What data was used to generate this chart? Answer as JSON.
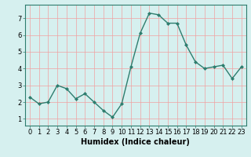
{
  "x": [
    0,
    1,
    2,
    3,
    4,
    5,
    6,
    7,
    8,
    9,
    10,
    11,
    12,
    13,
    14,
    15,
    16,
    17,
    18,
    19,
    20,
    21,
    22,
    23
  ],
  "y": [
    2.3,
    1.9,
    2.0,
    3.0,
    2.8,
    2.2,
    2.5,
    2.0,
    1.5,
    1.1,
    1.9,
    4.1,
    6.1,
    7.3,
    7.2,
    6.7,
    6.7,
    5.4,
    4.4,
    4.0,
    4.1,
    4.2,
    3.4,
    4.1
  ],
  "line_color": "#2e7d6e",
  "marker": "D",
  "marker_size": 2.0,
  "line_width": 1.0,
  "bg_color": "#d6f0ef",
  "grid_color": "#f0a0a0",
  "xlabel": "Humidex (Indice chaleur)",
  "xlabel_fontsize": 7,
  "xlabel_bold": true,
  "tick_fontsize": 6,
  "ylim": [
    0.6,
    7.8
  ],
  "xlim": [
    -0.5,
    23.5
  ],
  "yticks": [
    1,
    2,
    3,
    4,
    5,
    6,
    7
  ],
  "xticks": [
    0,
    1,
    2,
    3,
    4,
    5,
    6,
    7,
    8,
    9,
    10,
    11,
    12,
    13,
    14,
    15,
    16,
    17,
    18,
    19,
    20,
    21,
    22,
    23
  ],
  "spine_color": "#2e7d6e"
}
